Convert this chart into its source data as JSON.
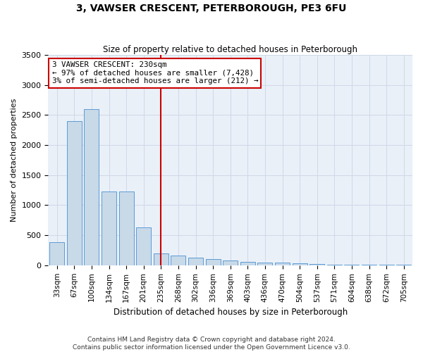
{
  "title": "3, VAWSER CRESCENT, PETERBOROUGH, PE3 6FU",
  "subtitle": "Size of property relative to detached houses in Peterborough",
  "xlabel": "Distribution of detached houses by size in Peterborough",
  "ylabel": "Number of detached properties",
  "bar_labels": [
    "33sqm",
    "67sqm",
    "100sqm",
    "134sqm",
    "167sqm",
    "201sqm",
    "235sqm",
    "268sqm",
    "302sqm",
    "336sqm",
    "369sqm",
    "403sqm",
    "436sqm",
    "470sqm",
    "504sqm",
    "537sqm",
    "571sqm",
    "604sqm",
    "638sqm",
    "672sqm",
    "705sqm"
  ],
  "bar_values": [
    380,
    2400,
    2600,
    1230,
    1230,
    630,
    200,
    160,
    130,
    100,
    80,
    60,
    50,
    40,
    30,
    20,
    15,
    10,
    5,
    5,
    5
  ],
  "bar_color": "#c8d9e8",
  "bar_edge_color": "#5b9bd5",
  "grid_color": "#d0d8e8",
  "background_color": "#eaf0f8",
  "vline_x_index": 6,
  "vline_color": "#cc0000",
  "annotation_line1": "3 VAWSER CRESCENT: 230sqm",
  "annotation_line2": "← 97% of detached houses are smaller (7,428)",
  "annotation_line3": "3% of semi-detached houses are larger (212) →",
  "annotation_box_facecolor": "#ffffff",
  "annotation_box_edgecolor": "#cc0000",
  "ylim": [
    0,
    3500
  ],
  "yticks": [
    0,
    500,
    1000,
    1500,
    2000,
    2500,
    3000,
    3500
  ],
  "footnote1": "Contains HM Land Registry data © Crown copyright and database right 2024.",
  "footnote2": "Contains public sector information licensed under the Open Government Licence v3.0."
}
